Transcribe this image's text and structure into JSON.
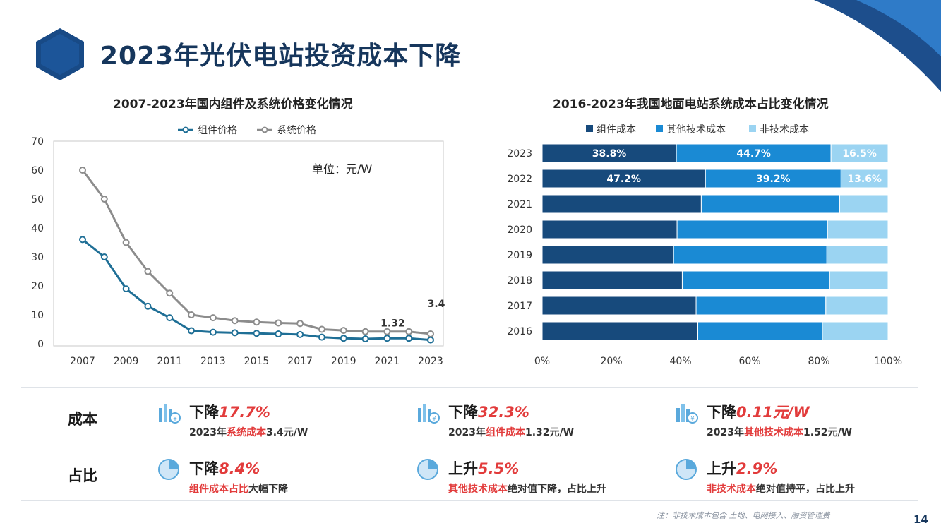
{
  "page": {
    "title": "2023年光伏电站投资成本下降",
    "page_number": "14",
    "footnote": "注：非技术成本包含 土地、电网接入、融资管理费",
    "colors": {
      "navy": "#16365c",
      "accent_red": "#e23b3b"
    }
  },
  "left_chart": {
    "subtitle": "2007-2023年国内组件及系统价格变化情况"
  },
  "right_chart": {
    "subtitle": "2016-2023年我国地面电站系统成本占比变化情况"
  },
  "chart_data": [
    {
      "type": "line",
      "title": "2007-2023年国内组件及系统价格变化情况",
      "unit_note": "单位：元/W",
      "x": [
        2007,
        2008,
        2009,
        2010,
        2011,
        2012,
        2013,
        2014,
        2015,
        2016,
        2017,
        2018,
        2019,
        2020,
        2021,
        2022,
        2023
      ],
      "x_ticks": [
        2007,
        2009,
        2011,
        2013,
        2015,
        2017,
        2019,
        2021,
        2023
      ],
      "ylim": [
        0,
        70
      ],
      "y_ticks": [
        0,
        10,
        20,
        30,
        40,
        50,
        60,
        70
      ],
      "grid": false,
      "legend_position": "top",
      "series": [
        {
          "name": "组件价格",
          "color": "#1f6f96",
          "values": [
            36,
            30,
            19,
            13,
            9,
            4.5,
            4,
            3.8,
            3.6,
            3.4,
            3.2,
            2.3,
            1.9,
            1.7,
            1.9,
            1.9,
            1.32
          ]
        },
        {
          "name": "系统价格",
          "color": "#8c8c8c",
          "values": [
            60,
            50,
            35,
            25,
            17.5,
            10,
            9,
            8,
            7.5,
            7.2,
            7,
            5,
            4.6,
            4.2,
            4.2,
            4.2,
            3.4
          ]
        }
      ],
      "annotations": [
        {
          "text": "1.32",
          "x": 2021,
          "y": 6
        },
        {
          "text": "3.4",
          "x": 2023,
          "y": 12.7
        }
      ]
    },
    {
      "type": "bar",
      "orientation": "horizontal",
      "stacked": "percent",
      "title": "2016-2023年我国地面电站系统成本占比变化情况",
      "categories": [
        "2023",
        "2022",
        "2021",
        "2020",
        "2019",
        "2018",
        "2017",
        "2016"
      ],
      "xlim": [
        0,
        100
      ],
      "x_ticks": [
        "0%",
        "20%",
        "40%",
        "60%",
        "80%",
        "100%"
      ],
      "legend_position": "top",
      "series": [
        {
          "name": "组件成本",
          "color": "#174a7c",
          "values": [
            38.8,
            47.2,
            46,
            39,
            38,
            40.5,
            44.5,
            45
          ]
        },
        {
          "name": "其他技术成本",
          "color": "#1a8ad4",
          "values": [
            44.7,
            39.2,
            40,
            43.5,
            44.3,
            42.6,
            37.5,
            36
          ]
        },
        {
          "name": "非技术成本",
          "color": "#9bd4f2",
          "values": [
            16.5,
            13.6,
            14,
            17.5,
            17.7,
            16.9,
            18,
            19
          ]
        }
      ],
      "data_labels": [
        [
          "38.8%",
          "44.7%",
          "16.5%"
        ],
        [
          "47.2%",
          "39.2%",
          "13.6%"
        ]
      ]
    }
  ],
  "summary": {
    "rows": [
      {
        "label": "成本",
        "cells": [
          {
            "icon": "building-cost-icon",
            "action": "下降",
            "value": "17.7%",
            "desc_pre": "2023年",
            "desc_hl": "系统成本",
            "desc_post": "3.4元/W"
          },
          {
            "icon": "building-cost-icon",
            "action": "下降",
            "value": "32.3%",
            "desc_pre": "2023年",
            "desc_hl": "组件成本",
            "desc_post": "1.32元/W"
          },
          {
            "icon": "building-cost-icon",
            "action": "下降",
            "value": "0.11元/W",
            "desc_pre": "2023年",
            "desc_hl": "其他技术成本",
            "desc_post": "1.52元/W"
          }
        ]
      },
      {
        "label": "占比",
        "cells": [
          {
            "icon": "pie-chart-icon",
            "action": "下降",
            "value": "8.4%",
            "desc_pre": "",
            "desc_hl": "组件成本占比",
            "desc_post": "大幅下降"
          },
          {
            "icon": "pie-chart-icon",
            "action": "上升",
            "value": "5.5%",
            "desc_pre": "",
            "desc_hl": "其他技术成本",
            "desc_post": "绝对值下降，占比上升"
          },
          {
            "icon": "pie-chart-icon",
            "action": "上升",
            "value": "2.9%",
            "desc_pre": "",
            "desc_hl": "非技术成本",
            "desc_post": "绝对值持平，占比上升"
          }
        ]
      }
    ]
  }
}
